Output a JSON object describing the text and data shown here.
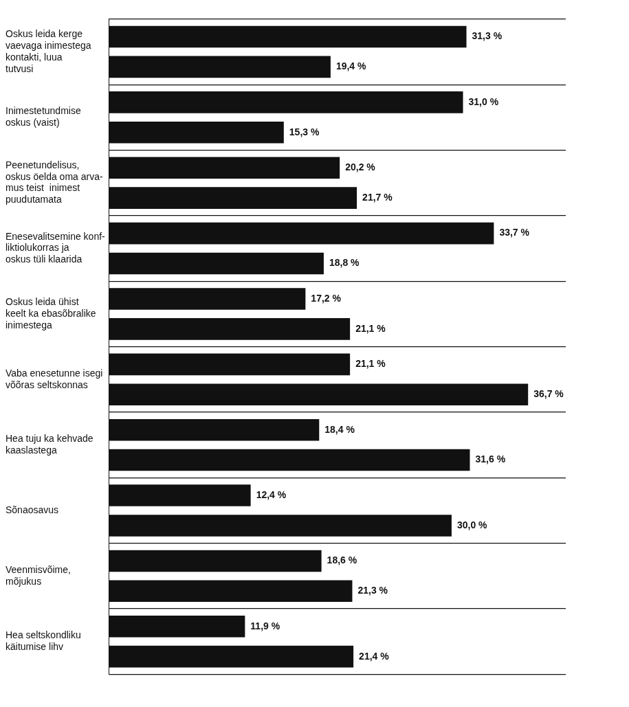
{
  "chart_data": {
    "type": "bar",
    "orientation": "horizontal",
    "categories": [
      "Oskus leida kerge\nvaevaga inimestega\nkontakti, luua\ntutvusi",
      "Inimestetundmise\noskus (vaist)",
      "Peenetundelisus,\noskus öelda oma arva-\nmus teist  inimest\npuudutamata",
      "Enesevalitsemine konf-\nliktiolukorras ja\noskus tüli klaarida",
      "Oskus leida ühist\nkeelt ka ebasõbralike\ninimestega",
      "Vaba enesetunne isegi\nvõõras seltskonnas",
      "Hea tuju ka kehvade\nkaaslastega",
      "Sõnaosavus",
      "Veenmisvõime,\nmõjukus",
      "Hea seltskondliku\nkäitumise lihv"
    ],
    "series": [
      {
        "color": "#111111",
        "values": [
          31.3,
          31.0,
          20.2,
          33.7,
          17.2,
          21.1,
          18.4,
          12.4,
          18.6,
          11.9
        ],
        "value_labels": [
          "31,3 %",
          "31,0 %",
          "20,2 %",
          "33,7 %",
          "17,2 %",
          "21,1 %",
          "18,4 %",
          "12,4 %",
          "18,6 %",
          "11,9 %"
        ]
      },
      {
        "color": "#111111",
        "values": [
          19.4,
          15.3,
          21.7,
          18.8,
          21.1,
          36.7,
          31.6,
          30.0,
          21.3,
          21.4
        ],
        "value_labels": [
          "19,4 %",
          "15,3 %",
          "21,7 %",
          "18,8 %",
          "21,1 %",
          "36,7 %",
          "31,6 %",
          "30,0 %",
          "21,3 %",
          "21,4 %"
        ]
      }
    ],
    "grid": "y",
    "legend": false,
    "tick_labels": "y"
  }
}
